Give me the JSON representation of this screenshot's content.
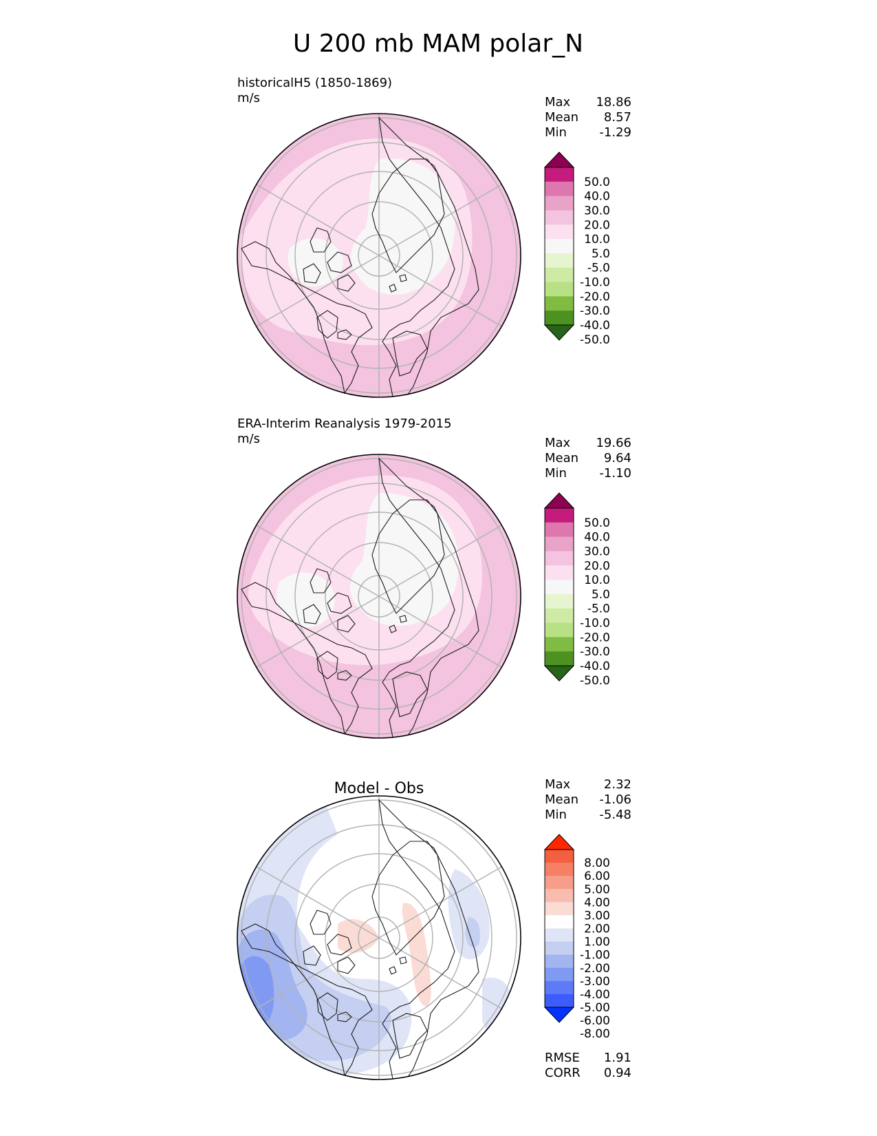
{
  "title": "U 200 mb MAM polar_N",
  "stat_labels": {
    "max": "Max",
    "mean": "Mean",
    "min": "Min"
  },
  "colors": {
    "pink_scale": [
      "#276419",
      "#4d9221",
      "#7fbc41",
      "#b8e186",
      "#cfeaa4",
      "#e6f5d0",
      "#f7f7f7",
      "#fde0ef",
      "#f3c3df",
      "#e9a3c9",
      "#de77ae",
      "#c51b7d",
      "#8e0152"
    ],
    "diff_scale": [
      "#0433ff",
      "#3c5cfb",
      "#5e7bf7",
      "#8099f3",
      "#a2b5f0",
      "#c4cff1",
      "#dfe5f7",
      "#ffffff",
      "#fadcd5",
      "#f8bdaf",
      "#f79e8a",
      "#f67f65",
      "#f55f41",
      "#ff2600"
    ],
    "gridline": "#b3b3b3",
    "coastline": "#1a1a1a"
  },
  "panels": [
    {
      "title": "historicalH5 (1850-1869)",
      "units": "m/s",
      "max": "18.86",
      "mean": "8.57",
      "min": "-1.29",
      "colorbar_ticks": [
        "50.0",
        "40.0",
        "30.0",
        "20.0",
        "10.0",
        "5.0",
        "-5.0",
        "-10.0",
        "-20.0",
        "-30.0",
        "-40.0",
        "-50.0"
      ],
      "field": "model"
    },
    {
      "title": "ERA-Interim Reanalysis 1979-2015",
      "units": "m/s",
      "max": "19.66",
      "mean": "9.64",
      "min": "-1.10",
      "colorbar_ticks": [
        "50.0",
        "40.0",
        "30.0",
        "20.0",
        "10.0",
        "5.0",
        "-5.0",
        "-10.0",
        "-20.0",
        "-30.0",
        "-40.0",
        "-50.0"
      ],
      "field": "obs"
    },
    {
      "title": "Model - Obs",
      "max": "2.32",
      "mean": "-1.06",
      "min": "-5.48",
      "colorbar_ticks": [
        "8.00",
        "6.00",
        "5.00",
        "4.00",
        "3.00",
        "2.00",
        "1.00",
        "-1.00",
        "-2.00",
        "-3.00",
        "-4.00",
        "-5.00",
        "-6.00",
        "-8.00"
      ],
      "rmse_label": "RMSE",
      "rmse": "1.91",
      "corr_label": "CORR",
      "corr": "0.94",
      "field": "diff"
    }
  ],
  "chart_data": [
    {
      "type": "heatmap",
      "projection": "north polar stereographic",
      "title": "historicalH5 (1850-1869)",
      "units": "m/s",
      "levels": [
        -50,
        -40,
        -30,
        -20,
        -10,
        -5,
        5,
        10,
        20,
        30,
        40,
        50
      ],
      "colorbar_extend": "both",
      "stats": {
        "max": 18.86,
        "mean": 8.57,
        "min": -1.29
      }
    },
    {
      "type": "heatmap",
      "projection": "north polar stereographic",
      "title": "ERA-Interim Reanalysis 1979-2015",
      "units": "m/s",
      "levels": [
        -50,
        -40,
        -30,
        -20,
        -10,
        -5,
        5,
        10,
        20,
        30,
        40,
        50
      ],
      "colorbar_extend": "both",
      "stats": {
        "max": 19.66,
        "mean": 9.64,
        "min": -1.1
      }
    },
    {
      "type": "heatmap",
      "projection": "north polar stereographic",
      "title": "Model - Obs",
      "levels": [
        -8,
        -6,
        -5,
        -4,
        -3,
        -2,
        -1,
        1,
        2,
        3,
        4,
        5,
        6,
        8
      ],
      "colorbar_extend": "both",
      "stats": {
        "max": 2.32,
        "mean": -1.06,
        "min": -5.48,
        "rmse": 1.91,
        "corr": 0.94
      }
    }
  ]
}
